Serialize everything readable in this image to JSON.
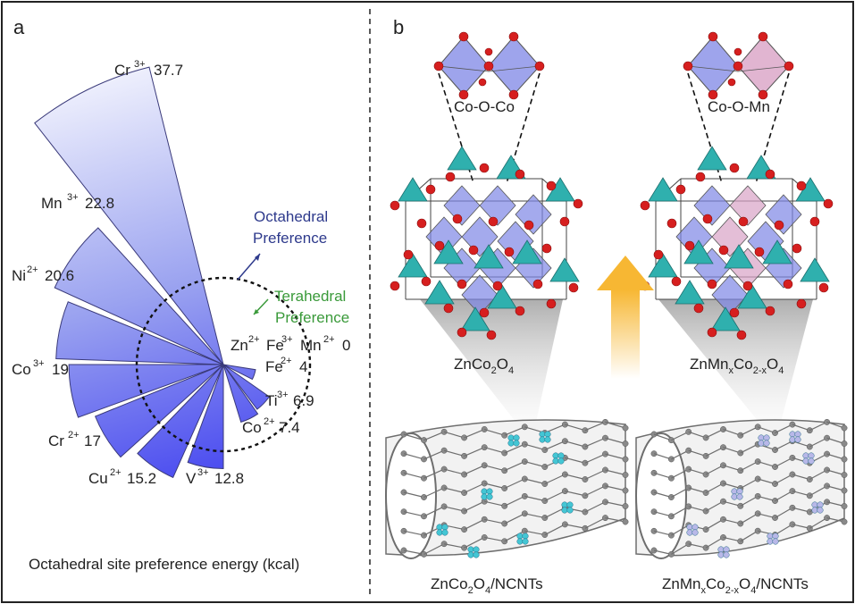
{
  "panel_a": {
    "letter": "a",
    "chart_data": {
      "type": "polar-bar",
      "x_label": "Octahedral site preference energy  (kcal)",
      "series": [
        {
          "ion": "Cr",
          "charge": "3+",
          "value": 37.7,
          "label": "37.7"
        },
        {
          "ion": "Mn",
          "charge": "3+",
          "value": 22.8,
          "label": "22.8"
        },
        {
          "ion": "Ni",
          "charge": "2+",
          "value": 20.6,
          "label": "20.6"
        },
        {
          "ion": "Co",
          "charge": "3+",
          "value": 19,
          "label": "19"
        },
        {
          "ion": "Cr",
          "charge": "2+",
          "value": 17,
          "label": "17"
        },
        {
          "ion": "Cu",
          "charge": "2+",
          "value": 15.2,
          "label": "15.2"
        },
        {
          "ion": "V",
          "charge": "3+",
          "value": 12.8,
          "label": "12.8"
        },
        {
          "ion": "Co",
          "charge": "2+",
          "value": 7.4,
          "label": "7.4"
        },
        {
          "ion": "Ti",
          "charge": "3+",
          "value": 6.9,
          "label": "6.9"
        },
        {
          "ion": "Fe",
          "charge": "2+",
          "value": 4,
          "label": "4"
        },
        {
          "ion": "Zn",
          "charge": "2+",
          "value": 0,
          "label": ""
        },
        {
          "ion": "Fe",
          "charge": "3+",
          "value": 0,
          "label": ""
        },
        {
          "ion": "Mn",
          "charge": "2+",
          "value": 0,
          "label": "0"
        }
      ],
      "annotations": {
        "octahedral_line1": "Octahedral",
        "octahedral_line2": "Preference",
        "tetrahedral_line1": "Terahedral",
        "tetrahedral_line2": "Preference"
      },
      "colors": {
        "octahedral": "#2e3a8c",
        "tetrahedral": "#3a9a3a",
        "bar_light": "#ffffff",
        "bar_dark": "#4848f0"
      }
    }
  },
  "panel_b": {
    "letter": "b",
    "top_left_label": "Co-O-Co",
    "top_right_label": "Co-O-Mn",
    "mid_left": {
      "p1": "ZnCo",
      "s1": "2",
      "p2": "O",
      "s2": "4"
    },
    "mid_right": {
      "p1": "ZnMn",
      "s1": "x",
      "p2": "Co",
      "s2": "2-x",
      "p3": "O",
      "s3": "4"
    },
    "bot_left": {
      "p1": "ZnCo",
      "s1": "2",
      "p2": "O",
      "s2": "4",
      "p3": "/NCNTs"
    },
    "bot_right": {
      "p1": "ZnMn",
      "s1": "x",
      "p2": "Co",
      "s2": "2-x",
      "p3": "O",
      "s3": "4",
      "p4": "/NCNTs"
    },
    "colors": {
      "teal": "#2fb0ae",
      "blue_oct": "#7d86e6",
      "pink_oct": "#d9a3c6",
      "oxygen": "#d61f1f",
      "carbon": "#7a7a7a",
      "arrow": "#f7b733"
    }
  }
}
